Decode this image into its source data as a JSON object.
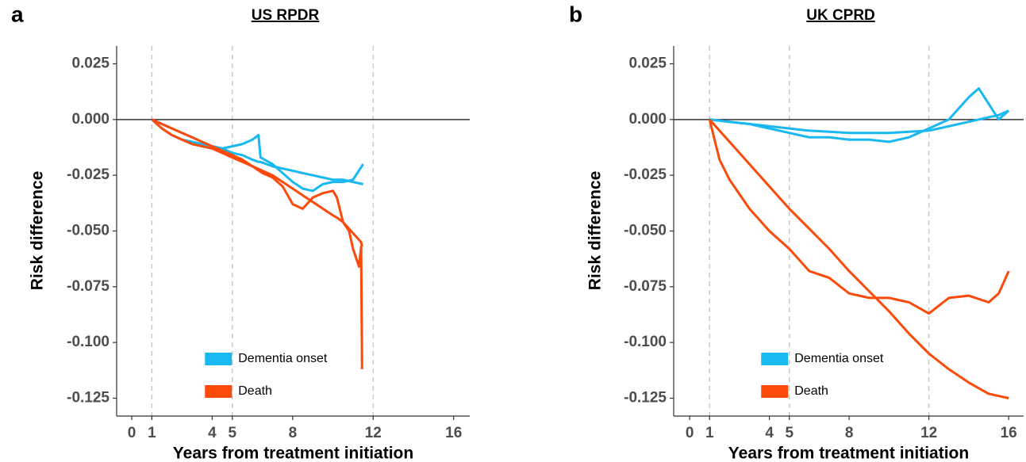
{
  "chart_data": [
    {
      "type": "line",
      "panel": "a",
      "title": "US RPDR",
      "xlabel": "Years from treatment initiation",
      "ylabel": "Risk difference",
      "xlim": [
        -0.75,
        16.8
      ],
      "xticks": [
        0,
        1,
        4,
        5,
        8,
        12,
        16
      ],
      "ylim": [
        -0.133,
        0.033
      ],
      "yticks": [
        0.025,
        {
          "value": 0,
          "label": "0.000"
        },
        -0.025,
        {
          "value": -0.05,
          "label": "-0.050"
        },
        -0.075,
        {
          "value": -0.1,
          "label": "-0.100"
        },
        -0.125
      ],
      "vlines": [
        1,
        5,
        12
      ],
      "hline": 0,
      "legend": "bottom-left",
      "series": [
        {
          "name": "Dementia onset",
          "color": "#1ab8f0",
          "x": [
            1,
            1.5,
            2,
            2.5,
            3,
            3.5,
            4,
            4.5,
            5,
            5.5,
            6,
            6.3,
            6.4,
            7,
            7.5,
            8,
            8.5,
            9,
            9.5,
            10,
            10.5,
            11,
            11.5
          ],
          "values": [
            0,
            -0.004,
            -0.007,
            -0.009,
            -0.01,
            -0.011,
            -0.012,
            -0.013,
            -0.012,
            -0.011,
            -0.009,
            -0.007,
            -0.017,
            -0.02,
            -0.024,
            -0.028,
            -0.031,
            -0.032,
            -0.029,
            -0.028,
            -0.028,
            -0.027,
            -0.02
          ],
          "trend": [
            0,
            -0.002,
            -0.004,
            -0.006,
            -0.008,
            -0.01,
            -0.012,
            -0.013,
            -0.015,
            -0.016,
            -0.018,
            -0.019,
            -0.019,
            -0.021,
            -0.022,
            -0.023,
            -0.024,
            -0.025,
            -0.026,
            -0.027,
            -0.027,
            -0.028,
            -0.029
          ]
        },
        {
          "name": "Death",
          "color": "#fc4a0a",
          "x": [
            1,
            1.5,
            2,
            2.5,
            3,
            3.5,
            4,
            4.5,
            5,
            5.5,
            6,
            6.5,
            7,
            7.5,
            8,
            8.5,
            9,
            9.5,
            10,
            10.2,
            10.5,
            10.8,
            11,
            11.3,
            11.4,
            11.45
          ],
          "values": [
            0,
            -0.004,
            -0.007,
            -0.009,
            -0.011,
            -0.012,
            -0.013,
            -0.015,
            -0.017,
            -0.019,
            -0.021,
            -0.024,
            -0.026,
            -0.03,
            -0.038,
            -0.04,
            -0.035,
            -0.033,
            -0.032,
            -0.035,
            -0.046,
            -0.05,
            -0.058,
            -0.066,
            -0.057,
            -0.112
          ],
          "trend": [
            0,
            -0.002,
            -0.004,
            -0.006,
            -0.008,
            -0.01,
            -0.012,
            -0.014,
            -0.016,
            -0.018,
            -0.021,
            -0.023,
            -0.025,
            -0.028,
            -0.031,
            -0.034,
            -0.037,
            -0.04,
            -0.043,
            -0.044,
            -0.046,
            -0.049,
            -0.051,
            -0.054,
            -0.055,
            -0.057
          ]
        }
      ]
    },
    {
      "type": "line",
      "panel": "b",
      "title": "UK CPRD",
      "xlabel": "Years from treatment initiation",
      "ylabel": "Risk difference",
      "xlim": [
        -0.8,
        16.75
      ],
      "xticks": [
        0,
        1,
        4,
        5,
        8,
        12,
        16
      ],
      "ylim": [
        -0.133,
        0.033
      ],
      "yticks": [
        0.025,
        {
          "value": 0,
          "label": "0.000"
        },
        -0.025,
        {
          "value": -0.05,
          "label": "-0.050"
        },
        -0.075,
        {
          "value": -0.1,
          "label": "-0.100"
        },
        -0.125
      ],
      "vlines": [
        1,
        5,
        12
      ],
      "hline": 0,
      "legend": "bottom-left",
      "series": [
        {
          "name": "Dementia onset",
          "color": "#1ab8f0",
          "x": [
            1,
            2,
            3,
            4,
            5,
            6,
            7,
            8,
            9,
            10,
            11,
            12,
            13,
            14,
            14.5,
            15,
            15.5,
            16
          ],
          "values": [
            0,
            -0.001,
            -0.002,
            -0.004,
            -0.006,
            -0.008,
            -0.008,
            -0.009,
            -0.009,
            -0.01,
            -0.008,
            -0.004,
            0,
            0.01,
            0.014,
            0.007,
            0,
            0.004
          ],
          "trend": [
            0,
            -0.001,
            -0.002,
            -0.003,
            -0.004,
            -0.005,
            -0.0055,
            -0.006,
            -0.006,
            -0.006,
            -0.0055,
            -0.005,
            -0.003,
            -0.001,
            0,
            0.001,
            0.002,
            0.004
          ]
        },
        {
          "name": "Death",
          "color": "#fc4a0a",
          "x": [
            1,
            1.5,
            2,
            3,
            4,
            5,
            6,
            7,
            8,
            9,
            10,
            11,
            12,
            13,
            14,
            15,
            15.5,
            16
          ],
          "values": [
            0,
            -0.018,
            -0.027,
            -0.04,
            -0.05,
            -0.058,
            -0.068,
            -0.071,
            -0.078,
            -0.08,
            -0.08,
            -0.082,
            -0.087,
            -0.08,
            -0.079,
            -0.082,
            -0.078,
            -0.068
          ],
          "trend": [
            0,
            -0.005,
            -0.01,
            -0.02,
            -0.03,
            -0.04,
            -0.049,
            -0.058,
            -0.068,
            -0.077,
            -0.086,
            -0.096,
            -0.105,
            -0.112,
            -0.118,
            -0.123,
            -0.124,
            -0.125
          ]
        }
      ]
    }
  ]
}
